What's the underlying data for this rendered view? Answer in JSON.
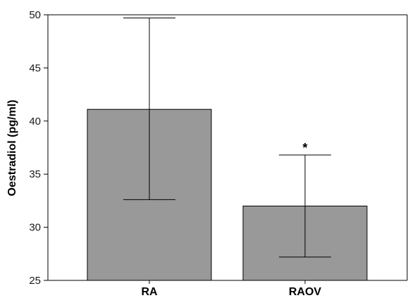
{
  "chart_data": {
    "type": "bar",
    "categories": [
      "RA",
      "RAOV"
    ],
    "values": [
      41.1,
      32.0
    ],
    "error_upper": [
      49.7,
      36.8
    ],
    "error_lower": [
      32.6,
      27.2
    ],
    "ylabel": "Oestradiol (pg/ml)",
    "xlabel": "",
    "ylim": [
      25,
      50
    ],
    "yticks": [
      "25",
      "30",
      "35",
      "40",
      "45",
      "50"
    ],
    "annotations": [
      {
        "category": "RAOV",
        "text": "*"
      }
    ],
    "grid": false,
    "colors": {
      "bar_fill": "#999999",
      "bar_stroke": "#000000",
      "axis": "#000000"
    }
  }
}
